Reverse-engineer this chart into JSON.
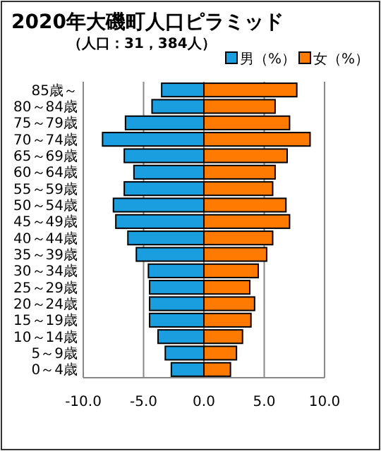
{
  "chart_data": {
    "type": "bar",
    "orientation": "horizontal",
    "stacked": true,
    "title": "2020年大磯町人口ピラミッド",
    "subtitle": "（人口：31，384人）",
    "categories": [
      "85歳～",
      "80～84歳",
      "75～79歳",
      "70～74歳",
      "65～69歳",
      "60～64歳",
      "55～59歳",
      "50～54歳",
      "45～49歳",
      "40～44歳",
      "35～39歳",
      "30～34歳",
      "25～29歳",
      "20～24歳",
      "15～19歳",
      "10～14歳",
      "5～9歳",
      "0～4歳"
    ],
    "series": [
      {
        "name": "男（%）",
        "color": "#1b9ee0",
        "values": [
          -3.5,
          -4.3,
          -6.5,
          -8.4,
          -6.6,
          -5.8,
          -6.6,
          -7.5,
          -7.3,
          -6.3,
          -5.6,
          -4.6,
          -4.5,
          -4.5,
          -4.5,
          -3.8,
          -3.2,
          -2.7
        ]
      },
      {
        "name": "女（%）",
        "color": "#ff7a00",
        "values": [
          7.7,
          5.9,
          7.1,
          8.8,
          6.9,
          5.9,
          5.7,
          6.8,
          7.1,
          5.7,
          5.2,
          4.5,
          3.8,
          4.2,
          3.9,
          3.2,
          2.7,
          2.2
        ]
      }
    ],
    "xlim": [
      -10,
      10
    ],
    "xticks": [
      {
        "value": -10,
        "label": "-10.0"
      },
      {
        "value": -5,
        "label": "-5.0"
      },
      {
        "value": 0,
        "label": "0.0"
      },
      {
        "value": 5,
        "label": "5.0"
      },
      {
        "value": 10,
        "label": "10.0"
      }
    ],
    "grid": "x",
    "legend": "top right"
  }
}
